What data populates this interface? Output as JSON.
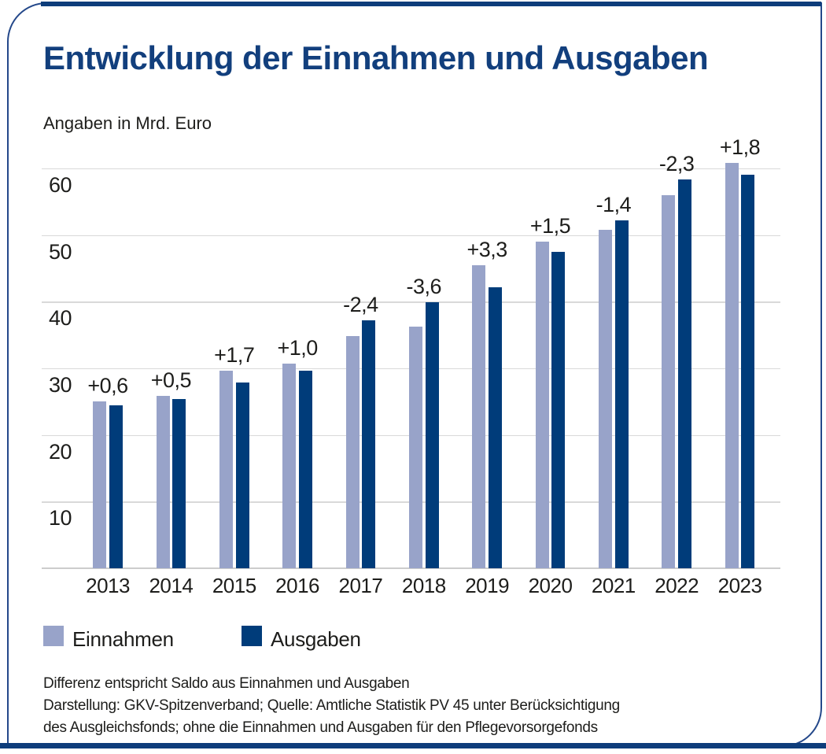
{
  "page": {
    "title": "Entwicklung der Einnahmen und Ausgaben",
    "subtitle": "Angaben in Mrd. Euro",
    "footnotes": [
      "Differenz entspricht Saldo aus Einnahmen und Ausgaben",
      "Darstellung: GKV-Spitzenverband; Quelle: Amtliche Statistik PV 45 unter Berücksichtigung",
      "des Ausgleichsfonds; ohne die Einnahmen und Ausgaben für den Pflegevorsorgefonds"
    ],
    "colors": {
      "accent_blue": "#0e3d7b",
      "border_blue": "#24488a",
      "title_blue": "#123f7d",
      "einnahmen": "#98a3c9",
      "ausgaben": "#003c7a",
      "gridline": "#d9d9d9",
      "text": "#1d1d1b"
    }
  },
  "chart_data": {
    "type": "bar",
    "title": "Entwicklung der Einnahmen und Ausgaben",
    "unit_note": "Angaben in Mrd. Euro",
    "categories": [
      "2013",
      "2014",
      "2015",
      "2016",
      "2017",
      "2018",
      "2019",
      "2020",
      "2021",
      "2022",
      "2023"
    ],
    "series": [
      {
        "name": "Einnahmen",
        "color": "#98a3c9",
        "values": [
          25.0,
          25.9,
          29.6,
          30.7,
          34.8,
          36.3,
          45.5,
          49.0,
          50.8,
          56.0,
          60.8
        ]
      },
      {
        "name": "Ausgaben",
        "color": "#003c7a",
        "values": [
          24.4,
          25.4,
          27.9,
          29.7,
          37.2,
          39.9,
          42.2,
          47.5,
          52.2,
          58.3,
          59.0
        ]
      }
    ],
    "diff_labels": [
      "+0,6",
      "+0,5",
      "+1,7",
      "+1,0",
      "-2,4",
      "-3,6",
      "+3,3",
      "+1,5",
      "-1,4",
      "-2,3",
      "+1,8"
    ],
    "y_ticks": [
      10,
      20,
      30,
      40,
      50,
      60
    ],
    "ylim": [
      0,
      63
    ],
    "xlabel": "",
    "ylabel": "",
    "grid": true,
    "legend_position": "bottom"
  }
}
